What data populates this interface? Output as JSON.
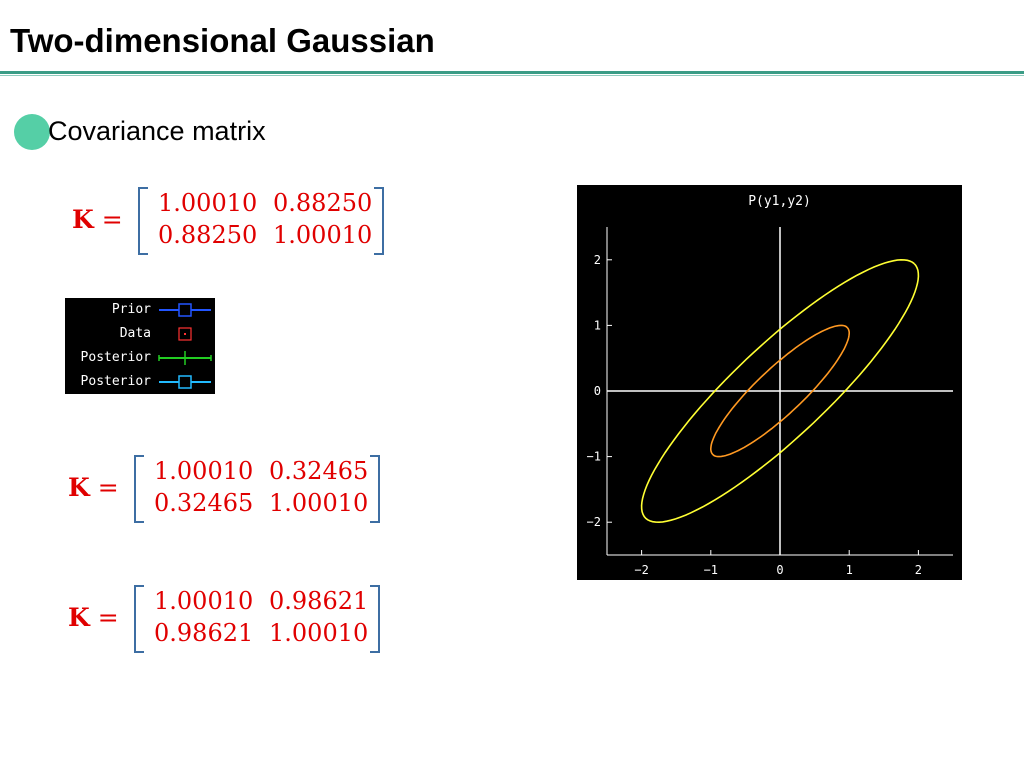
{
  "slide": {
    "title": "Two-dimensional Gaussian",
    "bullet": "Covariance matrix"
  },
  "equations": [
    {
      "lhs": "K",
      "eq": "=",
      "m11": "1.00010",
      "m12": "0.88250",
      "m21": "0.88250",
      "m22": "1.00010"
    },
    {
      "lhs": "K",
      "eq": "=",
      "m11": "1.00010",
      "m12": "0.32465",
      "m21": "0.32465",
      "m22": "1.00010"
    },
    {
      "lhs": "K",
      "eq": "=",
      "m11": "1.00010",
      "m12": "0.98621",
      "m21": "0.98621",
      "m22": "1.00010"
    }
  ],
  "legend": {
    "items": [
      {
        "label": "Prior",
        "color": "#2255ff",
        "marker": "square"
      },
      {
        "label": "Data",
        "color": "#ff3333",
        "marker": "dotted-square"
      },
      {
        "label": "Posterior",
        "color": "#22cc22",
        "marker": "plus"
      },
      {
        "label": "Posterior",
        "color": "#22bbff",
        "marker": "square"
      }
    ]
  },
  "plot": {
    "title": "P(y1,y2)",
    "background": "#000000"
  },
  "chart_data": {
    "type": "line",
    "title": "P(y1,y2)",
    "xlabel": "",
    "ylabel": "",
    "xlim": [
      -2.5,
      2.5
    ],
    "ylim": [
      -2.5,
      2.5
    ],
    "xticks": [
      -2,
      -1,
      0,
      1,
      2
    ],
    "yticks": [
      2,
      1,
      0,
      -1,
      -2
    ],
    "x_tick_labels": [
      "−2",
      "−1",
      "0",
      "1",
      "2"
    ],
    "y_tick_labels": [
      "2",
      "1",
      "0",
      "−1",
      "−2"
    ],
    "axes_through_origin": true,
    "grid": false,
    "series": [
      {
        "kind": "ellipse",
        "color": "#ffff33",
        "center": [
          0,
          0
        ],
        "covariance": [
          [
            1.0001,
            0.8825
          ],
          [
            0.8825,
            1.0001
          ]
        ],
        "level_sigma": 2.0
      },
      {
        "kind": "ellipse",
        "color": "#ff9922",
        "center": [
          0,
          0
        ],
        "covariance": [
          [
            1.0001,
            0.8825
          ],
          [
            0.8825,
            1.0001
          ]
        ],
        "level_sigma": 1.0
      }
    ]
  }
}
